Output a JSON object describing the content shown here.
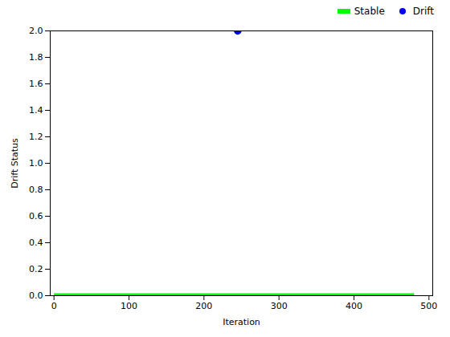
{
  "chart_data": {
    "type": "line",
    "xlabel": "Iteration",
    "ylabel": "Drift Status",
    "series": [
      {
        "name": "Stable",
        "type": "line",
        "color": "#00ff00",
        "line_style": "solid",
        "x": [
          0,
          480
        ],
        "values": [
          0,
          0
        ]
      },
      {
        "name": "Drift",
        "type": "scatter",
        "color": "#0000ff",
        "marker": "circle",
        "x": [
          245
        ],
        "values": [
          2
        ]
      }
    ],
    "xlim": [
      -5,
      505
    ],
    "ylim": [
      0,
      2
    ],
    "xticks": [
      0,
      100,
      200,
      300,
      400,
      500
    ],
    "yticks": [
      {
        "value": 0.0,
        "label": "0.0"
      },
      0.2,
      0.4,
      0.6,
      0.8,
      {
        "value": 1.0,
        "label": "1.0"
      },
      1.2,
      1.4,
      1.6,
      1.8,
      {
        "value": 2.0,
        "label": "2.0"
      }
    ],
    "grid": false,
    "legend": "upper right"
  }
}
